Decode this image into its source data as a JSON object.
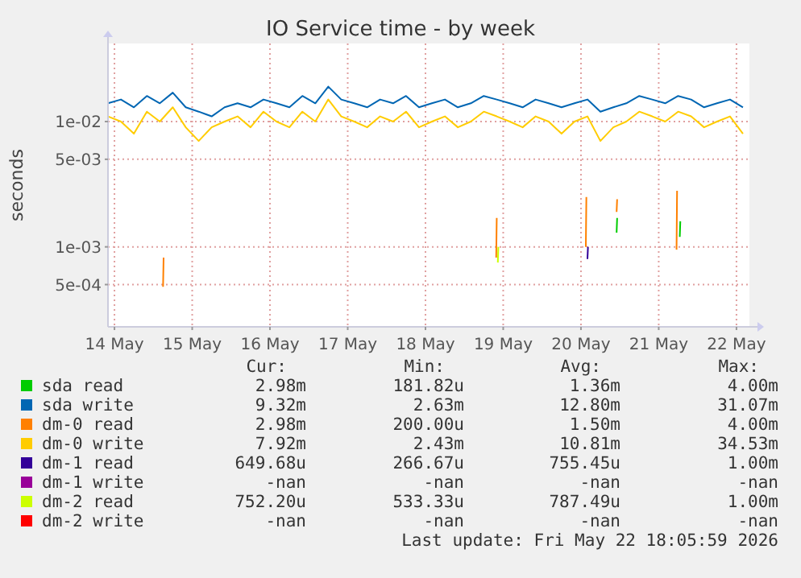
{
  "chart_data": {
    "type": "line",
    "title": "IO Service time - by week",
    "ylabel": "seconds",
    "log": "y",
    "grid": true,
    "legend": "bottom",
    "xlim": [
      "2026-05-14T10:00",
      "2026-05-22T16:00"
    ],
    "xticks": [
      {
        "value": "2026-05-14T12:00",
        "label": "14 May"
      },
      {
        "value": "2026-05-15T12:00",
        "label": "15 May"
      },
      {
        "value": "2026-05-16T12:00",
        "label": "16 May"
      },
      {
        "value": "2026-05-17T12:00",
        "label": "17 May"
      },
      {
        "value": "2026-05-18T12:00",
        "label": "18 May"
      },
      {
        "value": "2026-05-19T12:00",
        "label": "19 May"
      },
      {
        "value": "2026-05-20T12:00",
        "label": "20 May"
      },
      {
        "value": "2026-05-21T12:00",
        "label": "21 May"
      },
      {
        "value": "2026-05-22T12:00",
        "label": "22 May"
      }
    ],
    "ylim": [
      0.00023,
      0.042
    ],
    "yticks": [
      {
        "value": 0.0005,
        "label": "5e-04"
      },
      {
        "value": 0.001,
        "label": "1e-03"
      },
      {
        "value": 0.005,
        "label": "5e-03"
      },
      {
        "value": 0.01,
        "label": "1e-02"
      }
    ],
    "x": [
      "2026-05-14T10:00",
      "2026-05-14T14:00",
      "2026-05-14T18:00",
      "2026-05-14T22:00",
      "2026-05-15T02:00",
      "2026-05-15T06:00",
      "2026-05-15T10:00",
      "2026-05-15T14:00",
      "2026-05-15T18:00",
      "2026-05-15T22:00",
      "2026-05-16T02:00",
      "2026-05-16T06:00",
      "2026-05-16T10:00",
      "2026-05-16T14:00",
      "2026-05-16T18:00",
      "2026-05-16T22:00",
      "2026-05-17T02:00",
      "2026-05-17T06:00",
      "2026-05-17T10:00",
      "2026-05-17T14:00",
      "2026-05-17T18:00",
      "2026-05-17T22:00",
      "2026-05-18T02:00",
      "2026-05-18T06:00",
      "2026-05-18T10:00",
      "2026-05-18T14:00",
      "2026-05-18T18:00",
      "2026-05-18T22:00",
      "2026-05-19T02:00",
      "2026-05-19T06:00",
      "2026-05-19T10:00",
      "2026-05-19T14:00",
      "2026-05-19T18:00",
      "2026-05-19T22:00",
      "2026-05-20T02:00",
      "2026-05-20T06:00",
      "2026-05-20T10:00",
      "2026-05-20T14:00",
      "2026-05-20T18:00",
      "2026-05-20T22:00",
      "2026-05-21T02:00",
      "2026-05-21T06:00",
      "2026-05-21T10:00",
      "2026-05-21T14:00",
      "2026-05-21T18:00",
      "2026-05-21T22:00",
      "2026-05-22T02:00",
      "2026-05-22T06:00",
      "2026-05-22T10:00",
      "2026-05-22T14:00"
    ],
    "series": [
      {
        "name": "sda read",
        "color": "#00cc00",
        "x": [
          "2026-05-20T23:00",
          "2026-05-20T23:10",
          "2026-05-20T23:20",
          "2026-05-21T18:30",
          "2026-05-21T18:40"
        ],
        "values": [
          0.0013,
          0.0017,
          null,
          0.0012,
          0.0016
        ]
      },
      {
        "name": "sda write",
        "color": "#0066b3",
        "values": [
          0.014,
          0.015,
          0.013,
          0.016,
          0.014,
          0.017,
          0.013,
          0.012,
          0.011,
          0.013,
          0.014,
          0.013,
          0.015,
          0.014,
          0.013,
          0.016,
          0.014,
          0.019,
          0.015,
          0.014,
          0.013,
          0.015,
          0.014,
          0.016,
          0.013,
          0.014,
          0.015,
          0.013,
          0.014,
          0.016,
          0.015,
          0.014,
          0.013,
          0.015,
          0.014,
          0.013,
          0.014,
          0.015,
          0.012,
          0.013,
          0.014,
          0.016,
          0.015,
          0.014,
          0.016,
          0.015,
          0.013,
          0.014,
          0.015,
          0.013
        ]
      },
      {
        "name": "dm-0 read",
        "color": "#ff8000",
        "x": [
          "2026-05-15T03:00",
          "2026-05-15T03:10",
          "2026-05-15T03:20",
          "2026-05-19T09:50",
          "2026-05-19T10:00",
          "2026-05-19T10:10",
          "2026-05-20T13:30",
          "2026-05-20T13:40",
          "2026-05-20T13:50",
          "2026-05-20T23:00",
          "2026-05-20T23:10",
          "2026-05-20T23:20",
          "2026-05-21T17:30",
          "2026-05-21T17:40"
        ],
        "values": [
          0.00048,
          0.00082,
          null,
          0.00082,
          0.0017,
          null,
          0.001,
          0.0025,
          null,
          0.0019,
          0.0024,
          null,
          0.00095,
          0.0028
        ]
      },
      {
        "name": "dm-0 write",
        "color": "#ffcc00",
        "values": [
          0.011,
          0.01,
          0.008,
          0.012,
          0.01,
          0.013,
          0.009,
          0.007,
          0.009,
          0.01,
          0.011,
          0.009,
          0.012,
          0.01,
          0.009,
          0.012,
          0.01,
          0.015,
          0.011,
          0.01,
          0.009,
          0.011,
          0.01,
          0.012,
          0.009,
          0.01,
          0.011,
          0.009,
          0.01,
          0.012,
          0.011,
          0.01,
          0.009,
          0.011,
          0.01,
          0.008,
          0.01,
          0.011,
          0.007,
          0.009,
          0.01,
          0.012,
          0.011,
          0.01,
          0.012,
          0.011,
          0.009,
          0.01,
          0.011,
          0.008
        ]
      },
      {
        "name": "dm-1 read",
        "color": "#330099",
        "x": [
          "2026-05-20T14:00",
          "2026-05-20T14:10"
        ],
        "values": [
          0.0008,
          0.001
        ]
      },
      {
        "name": "dm-1 write",
        "color": "#990099",
        "values": [
          null,
          null,
          null,
          null,
          null,
          null,
          null,
          null,
          null,
          null,
          null,
          null,
          null,
          null,
          null,
          null,
          null,
          null,
          null,
          null,
          null,
          null,
          null,
          null,
          null,
          null,
          null,
          null,
          null,
          null,
          null,
          null,
          null,
          null,
          null,
          null,
          null,
          null,
          null,
          null,
          null,
          null,
          null,
          null,
          null,
          null,
          null,
          null,
          null,
          null
        ]
      },
      {
        "name": "dm-2 read",
        "color": "#ccff00",
        "x": [
          "2026-05-19T10:20",
          "2026-05-19T10:30"
        ],
        "values": [
          0.00075,
          0.001
        ]
      },
      {
        "name": "dm-2 write",
        "color": "#ff0000",
        "values": [
          null,
          null,
          null,
          null,
          null,
          null,
          null,
          null,
          null,
          null,
          null,
          null,
          null,
          null,
          null,
          null,
          null,
          null,
          null,
          null,
          null,
          null,
          null,
          null,
          null,
          null,
          null,
          null,
          null,
          null,
          null,
          null,
          null,
          null,
          null,
          null,
          null,
          null,
          null,
          null,
          null,
          null,
          null,
          null,
          null,
          null,
          null,
          null,
          null,
          null
        ]
      }
    ],
    "annotations": [
      "Cur:",
      "Min:",
      "Avg:",
      "Max:",
      "2.98m",
      "181.82u",
      "1.36m",
      "4.00m",
      "9.32m",
      "2.63m",
      "12.80m",
      "31.07m",
      "2.98m",
      "200.00u",
      "1.50m",
      "4.00m",
      "7.92m",
      "2.43m",
      "10.81m",
      "34.53m",
      "649.68u",
      "266.67u",
      "755.45u",
      "1.00m",
      "-nan",
      "-nan",
      "-nan",
      "-nan",
      "752.20u",
      "533.33u",
      "787.49u",
      "1.00m",
      "-nan",
      "-nan",
      "-nan",
      "-nan",
      "Last update: Fri May 22 18:05:59 2026"
    ]
  }
}
